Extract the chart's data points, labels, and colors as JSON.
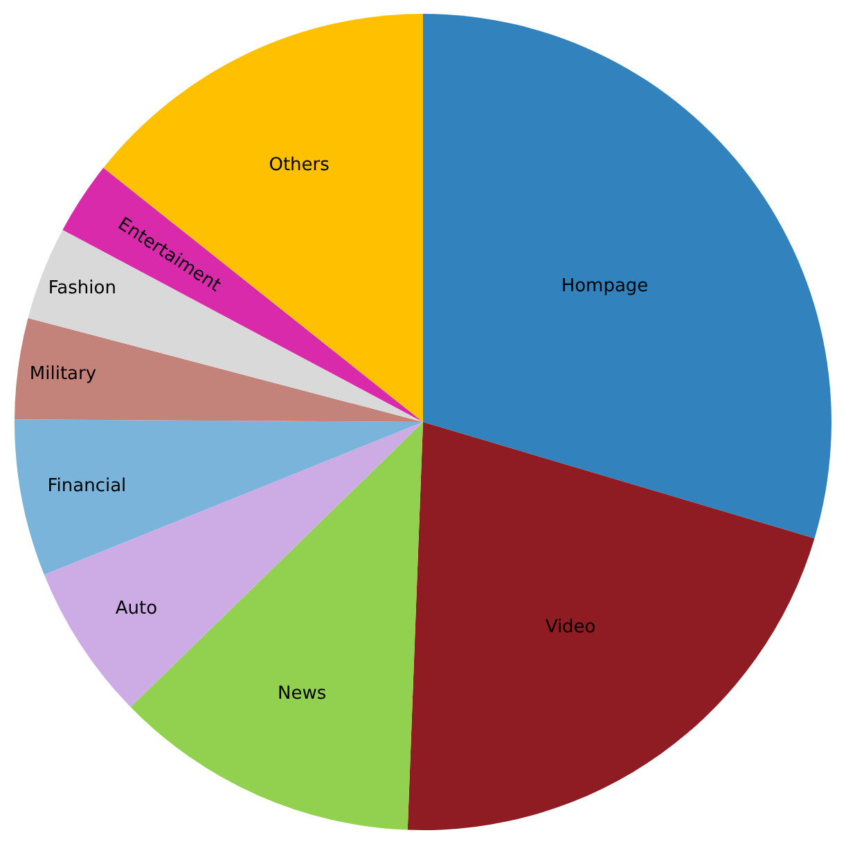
{
  "chart_data": {
    "type": "pie",
    "categories": [
      "Hompage",
      "Video",
      "News",
      "Auto",
      "Financial",
      "Military",
      "Fashion",
      "Entertaiment",
      "Others"
    ],
    "values": [
      29.6,
      21.0,
      12.1,
      6.2,
      6.2,
      4.0,
      3.7,
      2.9,
      14.3
    ],
    "colors": [
      "#3182bd",
      "#8e1c22",
      "#92d050",
      "#cdace6",
      "#7bb4db",
      "#c4837a",
      "#d9d9d9",
      "#d92aab",
      "#ffc000"
    ],
    "legend": false
  }
}
